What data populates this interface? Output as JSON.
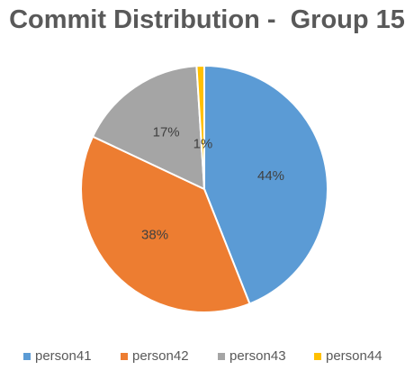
{
  "chart_data": {
    "type": "pie",
    "title": "Commit Distribution -  Group 15",
    "categories": [
      "person41",
      "person42",
      "person43",
      "person44"
    ],
    "values": [
      44,
      38,
      17,
      1
    ],
    "labels": [
      "44%",
      "38%",
      "17%",
      "1%"
    ],
    "colors": [
      "#5B9BD5",
      "#ED7D31",
      "#A5A5A5",
      "#FFC000"
    ],
    "legend_position": "bottom"
  }
}
